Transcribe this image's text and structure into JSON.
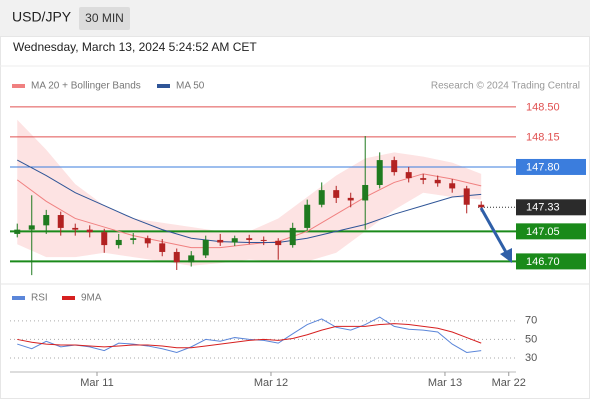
{
  "header": {
    "symbol": "USD/JPY",
    "interval": "30 MIN",
    "timestamp": "Wednesday, March 13, 2024 5:24:52 AM CET"
  },
  "chart_data": [
    {
      "type": "candlestick",
      "source": "Research © 2024 Trading Central",
      "up_color": "#1f7a1f",
      "down_color": "#b22222",
      "xlim": [
        -12,
        57.8
      ],
      "ylim": [
        146.46,
        148.58
      ],
      "x": [
        -11,
        -9,
        -7,
        -5,
        -3,
        -1,
        1,
        3,
        5,
        7,
        9,
        11,
        13,
        15,
        17,
        19,
        21,
        23,
        25,
        27,
        29,
        31,
        33,
        35,
        37,
        39,
        41,
        43,
        45,
        47,
        49,
        51,
        53
      ],
      "ohlc": [
        [
          147.02,
          147.14,
          146.98,
          147.07
        ],
        [
          147.07,
          147.47,
          146.54,
          147.12
        ],
        [
          147.12,
          147.3,
          147.02,
          147.24
        ],
        [
          147.24,
          147.28,
          147.0,
          147.09
        ],
        [
          147.09,
          147.14,
          147.0,
          147.07
        ],
        [
          147.07,
          147.12,
          146.98,
          147.04
        ],
        [
          147.04,
          147.08,
          146.8,
          146.89
        ],
        [
          146.89,
          147.02,
          146.85,
          146.95
        ],
        [
          146.95,
          147.03,
          146.9,
          146.97
        ],
        [
          146.97,
          147.0,
          146.86,
          146.91
        ],
        [
          146.91,
          146.96,
          146.76,
          146.81
        ],
        [
          146.81,
          146.85,
          146.6,
          146.69
        ],
        [
          146.69,
          146.82,
          146.64,
          146.77
        ],
        [
          146.77,
          147.0,
          146.74,
          146.95
        ],
        [
          146.95,
          147.02,
          146.88,
          146.92
        ],
        [
          146.92,
          147.0,
          146.88,
          146.97
        ],
        [
          146.97,
          147.01,
          146.9,
          146.95
        ],
        [
          146.95,
          146.99,
          146.89,
          146.94
        ],
        [
          146.94,
          146.97,
          146.72,
          146.89
        ],
        [
          146.89,
          147.15,
          146.86,
          147.09
        ],
        [
          147.09,
          147.42,
          147.06,
          147.36
        ],
        [
          147.36,
          147.62,
          147.33,
          147.53
        ],
        [
          147.53,
          147.58,
          147.38,
          147.44
        ],
        [
          147.44,
          147.5,
          147.33,
          147.41
        ],
        [
          147.41,
          148.16,
          147.07,
          147.59
        ],
        [
          147.59,
          147.97,
          147.55,
          147.88
        ],
        [
          147.88,
          147.92,
          147.7,
          147.74
        ],
        [
          147.74,
          147.8,
          147.62,
          147.67
        ],
        [
          147.67,
          147.72,
          147.6,
          147.65
        ],
        [
          147.65,
          147.7,
          147.57,
          147.61
        ],
        [
          147.61,
          147.66,
          147.5,
          147.55
        ],
        [
          147.55,
          147.58,
          147.26,
          147.36
        ],
        [
          147.36,
          147.4,
          147.28,
          147.33
        ]
      ],
      "overlays": [
        {
          "name": "MA 20 + Bollinger Bands",
          "color": "#f08080",
          "band_color": "#fde3e3",
          "x": [
            -11,
            -7,
            -3,
            1,
            5,
            9,
            13,
            17,
            21,
            25,
            29,
            33,
            37,
            41,
            45,
            49,
            53
          ],
          "values": [
            147.65,
            147.4,
            147.2,
            147.1,
            147.0,
            146.93,
            146.86,
            146.86,
            146.9,
            146.93,
            147.05,
            147.25,
            147.45,
            147.62,
            147.72,
            147.66,
            147.58
          ],
          "upper": [
            148.35,
            148.0,
            147.6,
            147.35,
            147.2,
            147.15,
            147.1,
            147.05,
            147.05,
            147.2,
            147.45,
            147.7,
            147.9,
            147.97,
            147.92,
            147.85,
            147.72
          ],
          "lower": [
            146.9,
            146.75,
            146.75,
            146.8,
            146.75,
            146.7,
            146.65,
            146.68,
            146.72,
            146.7,
            146.7,
            146.8,
            147.05,
            147.3,
            147.5,
            147.45,
            147.42
          ]
        },
        {
          "name": "MA 50",
          "color": "#2f5597",
          "x": [
            -11,
            -7,
            -3,
            1,
            5,
            9,
            13,
            17,
            21,
            25,
            29,
            33,
            37,
            41,
            45,
            49,
            53
          ],
          "values": [
            147.88,
            147.7,
            147.5,
            147.35,
            147.2,
            147.07,
            146.97,
            146.93,
            146.92,
            146.92,
            146.97,
            147.05,
            147.13,
            147.25,
            147.35,
            147.45,
            147.48
          ]
        }
      ],
      "levels": [
        {
          "value": 148.5,
          "label": "148.50",
          "color": "#e05050",
          "boxed": false
        },
        {
          "value": 148.15,
          "label": "148.15",
          "color": "#e05050",
          "boxed": false
        },
        {
          "value": 147.8,
          "label": "147.80",
          "color": "#3b7ddd",
          "boxed": true
        },
        {
          "value": 147.33,
          "label": "147.33",
          "color": "#2b2b2b",
          "boxed": true
        },
        {
          "value": 147.05,
          "label": "147.05",
          "color": "#1a8a1a",
          "boxed": true
        },
        {
          "value": 146.7,
          "label": "146.70",
          "color": "#1a8a1a",
          "boxed": true
        }
      ]
    },
    {
      "type": "line",
      "xlim": [
        -12,
        57.8
      ],
      "ylim": [
        15,
        87
      ],
      "yticks": [
        70,
        50,
        30
      ],
      "xticks": [
        {
          "value": 0,
          "label": "Mar 11"
        },
        {
          "value": 24,
          "label": "Mar 12"
        },
        {
          "value": 48,
          "label": "Mar 13"
        },
        {
          "value": 56.8,
          "label": "Mar 22"
        }
      ],
      "x": [
        -11,
        -9,
        -7,
        -5,
        -3,
        -1,
        1,
        3,
        5,
        7,
        9,
        11,
        13,
        15,
        17,
        19,
        21,
        23,
        25,
        27,
        29,
        31,
        33,
        35,
        37,
        39,
        41,
        43,
        45,
        47,
        49,
        51,
        53
      ],
      "series": [
        {
          "name": "RSI",
          "color": "#5b86d9",
          "values": [
            45,
            40,
            48,
            42,
            44,
            42,
            38,
            46,
            45,
            43,
            40,
            36,
            42,
            50,
            48,
            52,
            50,
            49,
            46,
            56,
            66,
            72,
            63,
            60,
            66,
            74,
            64,
            61,
            60,
            58,
            45,
            36,
            38
          ]
        },
        {
          "name": "9MA",
          "color": "#d62020",
          "values": [
            50,
            47,
            45,
            44,
            44,
            43,
            42,
            43,
            44,
            44,
            43,
            41,
            41,
            43,
            45,
            47,
            49,
            50,
            49,
            51,
            55,
            60,
            64,
            64,
            64,
            66,
            67,
            66,
            64,
            62,
            58,
            52,
            46
          ]
        }
      ]
    }
  ]
}
